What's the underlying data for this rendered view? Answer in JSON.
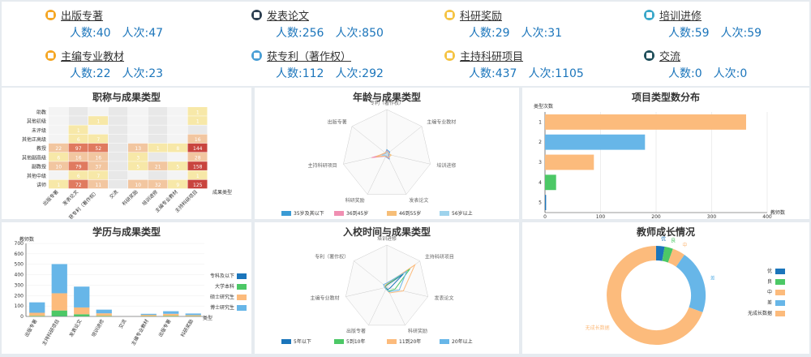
{
  "stats": [
    {
      "title": "出版专著",
      "people": "人数:40",
      "times": "人次:47",
      "icon": "book-icon",
      "color": "#f5a623"
    },
    {
      "title": "发表论文",
      "people": "人数:256",
      "times": "人次:850",
      "icon": "paper-icon",
      "color": "#2c3e50"
    },
    {
      "title": "科研奖励",
      "people": "人数:29",
      "times": "人次:31",
      "icon": "award-icon",
      "color": "#f5c342"
    },
    {
      "title": "培训进修",
      "people": "人数:59",
      "times": "人次:59",
      "icon": "training-icon",
      "color": "#3aa7c9"
    },
    {
      "title": "主编专业教材",
      "people": "人数:22",
      "times": "人次:23",
      "icon": "textbook-icon",
      "color": "#f5a623"
    },
    {
      "title": "获专利（著作权）",
      "people": "人数:112",
      "times": "人次:292",
      "icon": "patent-icon",
      "color": "#4a9fd6"
    },
    {
      "title": "主持科研项目",
      "people": "人数:437",
      "times": "人次:1105",
      "icon": "project-icon",
      "color": "#f5c342"
    },
    {
      "title": "交流",
      "people": "人数:0",
      "times": "人次:0",
      "icon": "exchange-icon",
      "color": "#1f4e5a"
    }
  ],
  "heatmap": {
    "title": "职称与成果类型",
    "rows": [
      "助教",
      "其他初级",
      "未评级",
      "其他正高级",
      "教授",
      "其他副高级",
      "副教授",
      "其他中级",
      "讲师"
    ],
    "cols": [
      "出版专著",
      "发表论文",
      "获专利（著作权）",
      "交流",
      "科研奖励",
      "培训进修",
      "主编专业教材",
      "主持科研项目"
    ],
    "xlabel": "成果类型",
    "values": [
      [
        "",
        "",
        "",
        "",
        "",
        "",
        "",
        "1"
      ],
      [
        "",
        "",
        "1",
        "",
        "",
        "",
        "",
        "1"
      ],
      [
        "",
        "1",
        "",
        "",
        "",
        "",
        "",
        ""
      ],
      [
        "",
        "6",
        "7",
        "",
        "",
        "",
        "",
        "16"
      ],
      [
        "22",
        "97",
        "52",
        "",
        "13",
        "1",
        "8",
        "144"
      ],
      [
        "6",
        "16",
        "16",
        "",
        "3",
        "",
        "",
        "28"
      ],
      [
        "10",
        "79",
        "37",
        "",
        "5",
        "21",
        "5",
        "158"
      ],
      [
        "",
        "6",
        "7",
        "",
        "",
        "",
        "",
        "1"
      ],
      [
        "1",
        "72",
        "11",
        "",
        "10",
        "32",
        "9",
        "125"
      ]
    ]
  },
  "radar_age": {
    "title": "年龄与成果类型",
    "axes": [
      "专利（著作权）",
      "主编专业教材",
      "培训进修",
      "发表论文",
      "科研奖励",
      "主持科研项目",
      "出版专著"
    ],
    "legend": [
      "35岁及其以下",
      "36到45岁",
      "46到55岁",
      "56岁以上"
    ],
    "colors": [
      "#3a9bd5",
      "#f08fb2",
      "#f6be78",
      "#9ed3ec"
    ],
    "series": [
      [
        0.1,
        0.08,
        0.05,
        0.12,
        0.06,
        0.1,
        0.04
      ],
      [
        0.08,
        0.05,
        0.04,
        0.1,
        0.05,
        0.35,
        0.03
      ],
      [
        0.06,
        0.04,
        0.1,
        0.08,
        0.04,
        0.25,
        0.05
      ],
      [
        0.05,
        0.03,
        0.03,
        0.06,
        0.03,
        0.12,
        0.02
      ]
    ]
  },
  "bar_types": {
    "title": "项目类型数分布",
    "ylabel": "类型次数",
    "xlabel": "教师数",
    "categories": [
      "1",
      "2",
      "3",
      "4",
      "5"
    ],
    "values": [
      362,
      180,
      88,
      20,
      2
    ],
    "colors": [
      "#fcbb7c",
      "#67b6e8",
      "#fcbb7c",
      "#4cc866",
      "#1b75bb"
    ],
    "xticks": [
      "0",
      "100",
      "200",
      "300",
      "400"
    ],
    "xlim": [
      0,
      400
    ]
  },
  "stack_edu": {
    "title": "学历与成果类型",
    "ylabel": "教师数",
    "xlabel": "类型",
    "yticks": [
      "0",
      "100",
      "200",
      "300",
      "400",
      "500",
      "600",
      "700"
    ],
    "categories": [
      "出版专著",
      "主持科研项目",
      "发表论文",
      "培训进修",
      "交流",
      "主编专业教材",
      "出版专著",
      "科研奖励"
    ],
    "legend": [
      "专科及以下",
      "大学本科",
      "硕士研究生",
      "博士研究生"
    ],
    "colors": [
      "#1b75bb",
      "#4cc866",
      "#fcbb7c",
      "#67b6e8"
    ],
    "series": [
      [
        0,
        2,
        1,
        0,
        0,
        0,
        0,
        0
      ],
      [
        5,
        55,
        20,
        5,
        0,
        3,
        5,
        3
      ],
      [
        30,
        165,
        65,
        25,
        0,
        12,
        20,
        10
      ],
      [
        100,
        280,
        200,
        35,
        0,
        10,
        25,
        15
      ]
    ]
  },
  "radar_join": {
    "title": "入校时间与成果类型",
    "axes": [
      "培训进修",
      "主持科研项目",
      "发表论文",
      "科研奖励",
      "出版专著",
      "主编专业教材",
      "专利（著作权）"
    ],
    "legend": [
      "5年以下",
      "5到10年",
      "11到20年",
      "20年以上"
    ],
    "colors": [
      "#1b75bb",
      "#4cc866",
      "#fcbb7c",
      "#67b6e8"
    ],
    "series": [
      [
        0.05,
        0.5,
        0.08,
        0.06,
        0.03,
        0.03,
        0.04
      ],
      [
        0.06,
        0.7,
        0.2,
        0.1,
        0.04,
        0.03,
        0.05
      ],
      [
        0.08,
        0.85,
        0.4,
        0.15,
        0.05,
        0.04,
        0.06
      ],
      [
        0.1,
        0.6,
        0.3,
        0.12,
        0.05,
        0.05,
        0.1
      ]
    ]
  },
  "donut": {
    "title": "教师成长情况",
    "labels": [
      "优",
      "良",
      "中",
      "差",
      "无成长数据"
    ],
    "values": [
      4,
      4,
      6,
      30,
      100
    ],
    "colors": [
      "#1b75bb",
      "#4cc866",
      "#fcbb7c",
      "#67b6e8",
      "#fcbb7c"
    ]
  }
}
